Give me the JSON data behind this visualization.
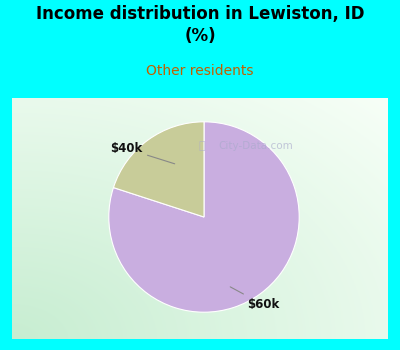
{
  "title": "Income distribution in Lewiston, ID\n(%)",
  "subtitle": "Other residents",
  "title_color": "#000000",
  "subtitle_color": "#c06000",
  "bg_color": "#00ffff",
  "slices": [
    0.8,
    0.2
  ],
  "slice_labels": [
    "$60k",
    "$40k"
  ],
  "slice_colors": [
    "#c9aee0",
    "#c8cc99"
  ],
  "watermark": "City-Data.com",
  "chart_bg_color_tl": [
    0.78,
    0.93,
    0.82
  ],
  "chart_bg_color_br": [
    0.97,
    1.0,
    0.97
  ]
}
